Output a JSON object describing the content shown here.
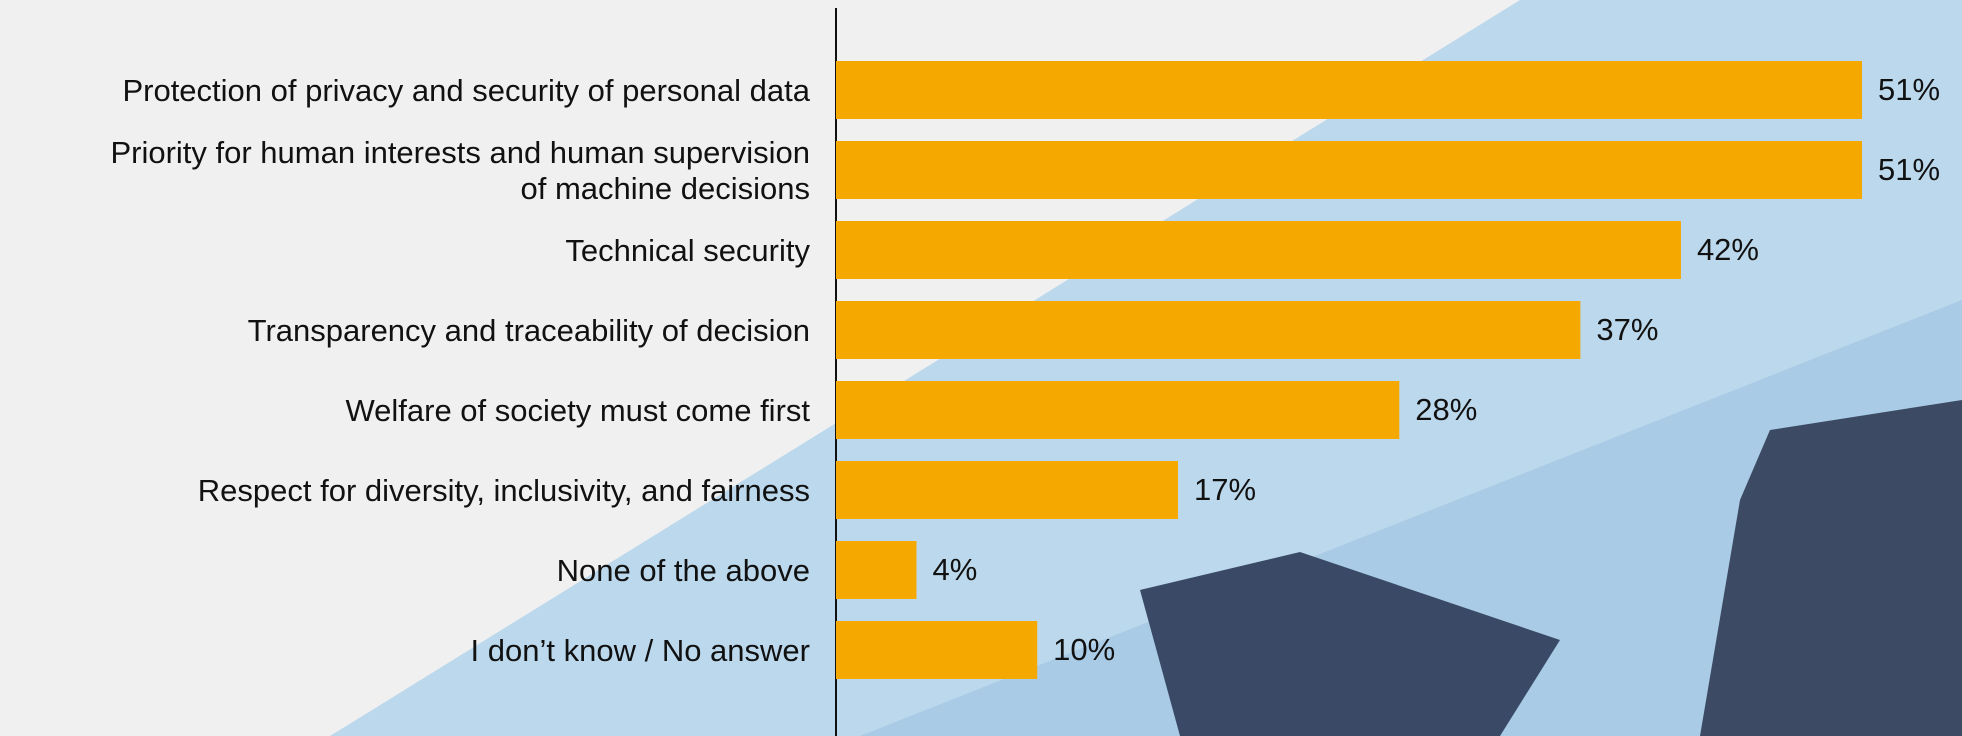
{
  "chart_data": {
    "type": "bar",
    "orientation": "horizontal",
    "categories": [
      "Protection of privacy and security of personal data",
      "Priority for human interests and human supervision\nof machine decisions",
      "Technical security",
      "Transparency and traceability of decision",
      "Welfare of society must come first",
      "Respect for diversity, inclusivity, and fairness",
      "None of the above",
      "I don’t know / No answer"
    ],
    "values": [
      51,
      51,
      42,
      37,
      28,
      17,
      4,
      10
    ],
    "value_labels": [
      "51%",
      "51%",
      "42%",
      "37%",
      "28%",
      "17%",
      "4%",
      "10%"
    ],
    "color": "#f5a800"
  }
}
